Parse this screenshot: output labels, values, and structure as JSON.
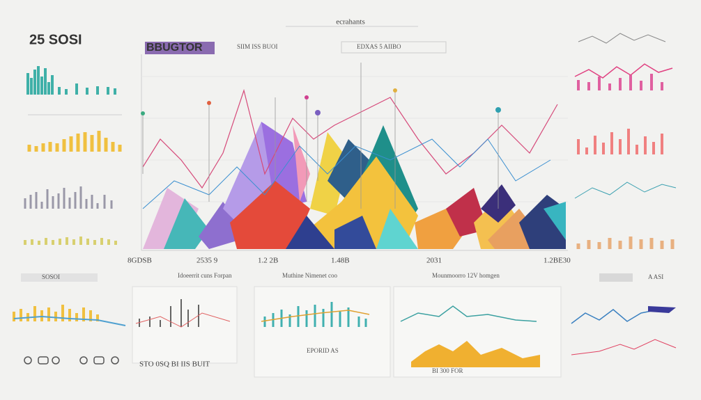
{
  "header": {
    "title": "ecrahants",
    "left_title": "25 SOSI",
    "main_title": "BBUGTOR",
    "toolbar_left": "SIIM ISS BUOI",
    "toolbar_right": "EDXAS 5 AIIBO"
  },
  "main_chart": {
    "axis_labels": [
      "8GDSB",
      "2535 9",
      "1.2 2B",
      "1.48B",
      "2031",
      "1.2BE30"
    ]
  },
  "bottom": {
    "left_label": "SOSOI",
    "right_label": "A ASI",
    "panel_titles": [
      "Idoeerrit cuns Forpan",
      "Muthine Nimenet coo",
      "Mounmoorro 12V homgen"
    ],
    "footer_texts": [
      "STO 0SQ BI IIS BUIT",
      "EPORID AS",
      "BI 300 FOR"
    ]
  }
}
